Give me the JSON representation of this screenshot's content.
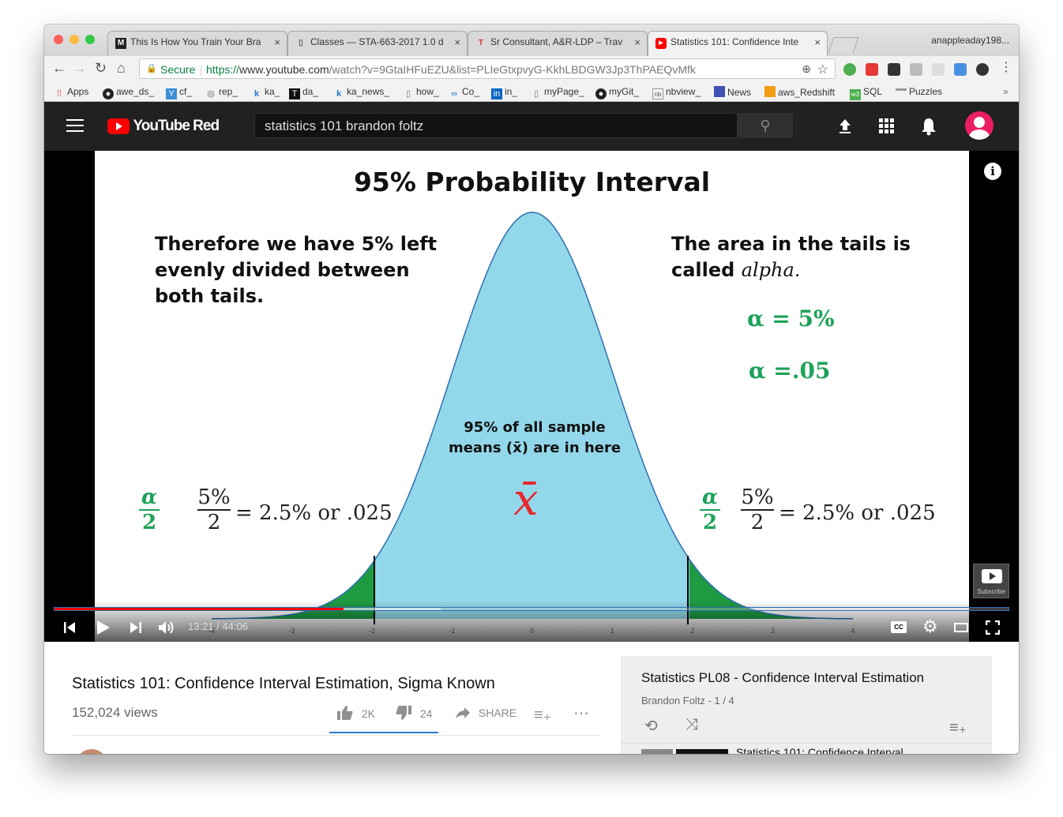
{
  "browser": {
    "tabs": [
      {
        "icon": "M",
        "title": "This Is How You Train Your Bra",
        "close": "×"
      },
      {
        "icon": "▯",
        "title": "Classes — STA-663-2017 1.0 d",
        "close": "×"
      },
      {
        "icon": "T",
        "title": "Sr Consultant, A&R-LDP – Trav",
        "close": "×"
      },
      {
        "icon": "▶",
        "title": "Statistics 101: Confidence Inte",
        "close": "×"
      }
    ],
    "profile": "anappleaday198...",
    "secure_label": "Secure",
    "url_scheme": "https://",
    "url_host": "www.youtube.com",
    "url_path": "/watch?v=9GtaIHFuEZU&list=PLIeGtxpvyG-KkhLBDGW3Jp3ThPAEQvMfk",
    "bookmarks": [
      "Apps",
      "awe_ds_",
      "cf_",
      "rep_",
      "ka_",
      "da_",
      "ka_news_",
      "how_",
      "Co_",
      "in_",
      "myPage_",
      "myGit_",
      "nbview_",
      "News",
      "aws_Redshift",
      "SQL",
      "Puzzles"
    ],
    "bookmarks_more": "»"
  },
  "youtube": {
    "logo_text": "YouTube Red",
    "search_value": "statistics 101 brandon foltz",
    "colors": {
      "brand": "#ff0000",
      "header": "#212121",
      "avatar": "#e91e63",
      "curve_fill": "#93d8ea",
      "tail_fill": "#1e9a43",
      "alpha_text": "#1ea25a",
      "xbar": "#e8262a"
    }
  },
  "slide": {
    "title": "95% Probability Interval",
    "left_text": [
      "Therefore we have 5% left",
      "evenly divided between",
      "both tails."
    ],
    "right_text_line1": "The area in the tails is",
    "right_text_line2_plain": "called ",
    "right_text_line2_italic": "alpha.",
    "alpha_pct": "α = 5%",
    "alpha_dec": "α =.05",
    "center_line1": "95% of all sample",
    "center_line2": "means (x̄) are in here",
    "xbar": "x̄",
    "frac_alpha_num": "α",
    "frac_alpha_den": "2",
    "frac_pct_num": "5%",
    "frac_pct_den": "2",
    "frac_result": "= 2.5% or .025",
    "axis_ticks": [
      "-4",
      "-3",
      "-2",
      "-1",
      "0",
      "1",
      "2",
      "3",
      "4"
    ]
  },
  "player": {
    "time": "13:21 / 44:06",
    "played_fraction": 0.303,
    "buffered_fraction": 0.405,
    "subscribe_label": "Subscribe",
    "cc_label": "CC"
  },
  "video": {
    "title": "Statistics 101: Confidence Interval Estimation, Sigma Known",
    "views": "152,024 views",
    "likes": "2K",
    "dislikes": "24",
    "share": "SHARE"
  },
  "playlist": {
    "title": "Statistics PL08 - Confidence Interval Estimation",
    "meta": "Brandon Foltz - 1 / 4",
    "next_item": "Statistics 101: Confidence Interval..."
  }
}
